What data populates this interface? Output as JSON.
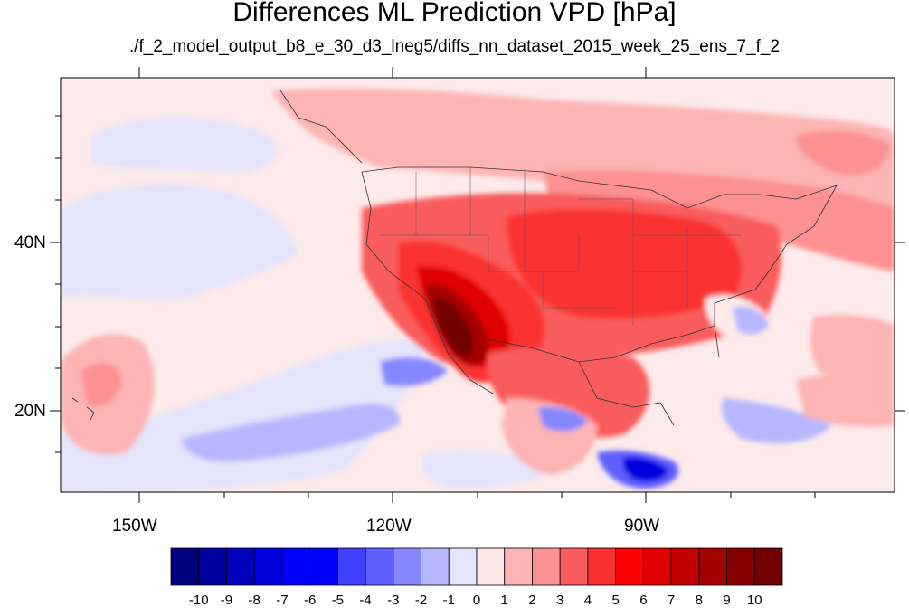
{
  "title": "Differences ML Prediction VPD [hPa]",
  "subtitle": "./f_2_model_output_b8_e_30_d3_lneg5/diffs_nn_dataset_2015_week_25_ens_7_f_2",
  "axes": {
    "x_ticks": [
      "150W",
      "120W",
      "90W"
    ],
    "y_ticks": [
      "40N",
      "20N"
    ]
  },
  "colorbar": {
    "labels": [
      "-10",
      "-9",
      "-8",
      "-7",
      "-6",
      "-5",
      "-4",
      "-3",
      "-2",
      "-1",
      "0",
      "1",
      "2",
      "3",
      "4",
      "5",
      "6",
      "7",
      "8",
      "9",
      "10"
    ],
    "colors": [
      "#00007f",
      "#00009f",
      "#0000bf",
      "#0000df",
      "#0000ff",
      "#0000ff",
      "#3f3fff",
      "#5f5fff",
      "#8787ff",
      "#b7b7ff",
      "#e4e4fb",
      "#fde7e7",
      "#fdb4b4",
      "#fd9191",
      "#f95c5c",
      "#fb3030",
      "#ff0000",
      "#e10000",
      "#c30000",
      "#a50000",
      "#870000",
      "#730000"
    ]
  },
  "colors": {
    "near_zero": "#fdeaea",
    "ocean_neutral": "#e4e4fb",
    "positive_max": "#730000",
    "negative_max": "#00007f"
  }
}
